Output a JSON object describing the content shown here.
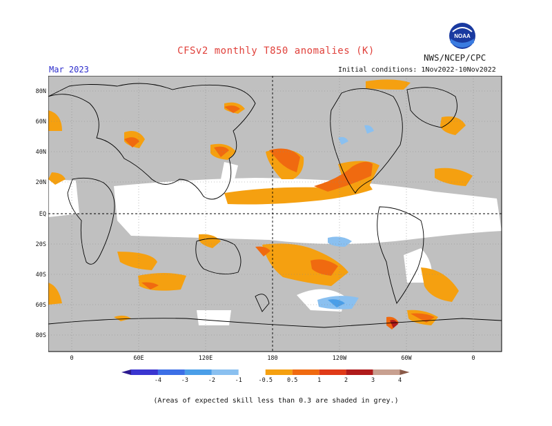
{
  "header": {
    "title": "CFSv2 monthly T850 anomalies (K)",
    "agency": "NWS/NCEP/CPC",
    "logo_text": "NOAA",
    "month": "Mar 2023",
    "initial_conditions": "Initial conditions: 1Nov2022-10Nov2022"
  },
  "map": {
    "lat_labels": [
      "80N",
      "60N",
      "40N",
      "20N",
      "EQ",
      "20S",
      "40S",
      "60S",
      "80S"
    ],
    "lon_labels": [
      "0",
      "60E",
      "120E",
      "180",
      "120W",
      "60W",
      "0"
    ],
    "grid": "dotted",
    "colors": {
      "skill_mask_grey": "#c0c0c0",
      "land_outline": "#000000"
    }
  },
  "colorbar": {
    "labels": [
      "-4",
      "-3",
      "-2",
      "-1",
      "-0.5",
      "0.5",
      "1",
      "2",
      "3",
      "4"
    ],
    "colors": [
      "#2b1a8f",
      "#3a35d0",
      "#3c6fe6",
      "#4a9ee8",
      "#8ac0f0",
      "#ffffff",
      "#f5a010",
      "#f06a10",
      "#e03a18",
      "#b01b1b",
      "#c8a090",
      "#8a5a48"
    ]
  },
  "footer": {
    "note": "(Areas of expected skill less than 0.3 are shaded in grey.)"
  }
}
